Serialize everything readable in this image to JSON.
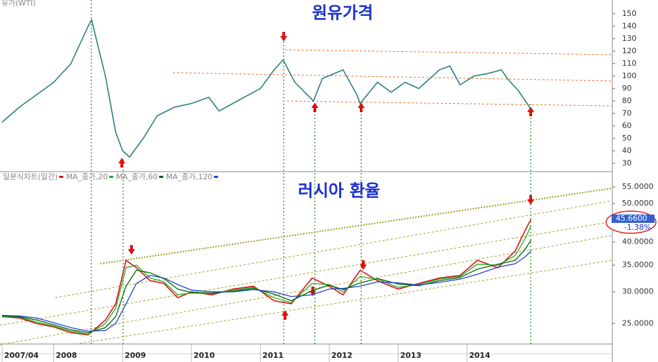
{
  "chart_data": [
    {
      "type": "line",
      "title": "원유가격",
      "axis_label": "유가(WTI)",
      "x": [
        2007.25,
        2007.5,
        2007.75,
        2008.0,
        2008.25,
        2008.5,
        2008.55,
        2008.75,
        2008.9,
        2009.0,
        2009.1,
        2009.3,
        2009.5,
        2009.75,
        2010.0,
        2010.25,
        2010.4,
        2010.6,
        2010.8,
        2011.0,
        2011.2,
        2011.33,
        2011.5,
        2011.77,
        2011.9,
        2012.2,
        2012.4,
        2012.45,
        2012.7,
        2012.9,
        2013.1,
        2013.3,
        2013.6,
        2013.75,
        2013.9,
        2014.1,
        2014.3,
        2014.5,
        2014.6,
        2014.75,
        2014.92
      ],
      "series": [
        {
          "name": "유가(WTI)",
          "color": "#2a7f7f",
          "values": [
            63,
            75,
            85,
            95,
            110,
            140,
            145,
            100,
            55,
            40,
            35,
            50,
            68,
            75,
            78,
            83,
            72,
            78,
            84,
            90,
            105,
            113,
            95,
            80,
            98,
            105,
            85,
            78,
            95,
            87,
            95,
            90,
            105,
            108,
            93,
            100,
            102,
            105,
            97,
            88,
            74
          ]
        }
      ],
      "xlim": [
        2007.22,
        2016.11
      ],
      "ylim": [
        23.3,
        161
      ],
      "yticks": [
        30,
        40,
        50,
        60,
        70,
        80,
        90,
        100,
        110,
        120,
        130,
        140,
        150
      ]
    },
    {
      "type": "line",
      "title": "러시아 환율",
      "log_scale": true,
      "x": [
        2007.25,
        2007.5,
        2007.75,
        2008.0,
        2008.25,
        2008.5,
        2008.75,
        2008.9,
        2009.05,
        2009.2,
        2009.4,
        2009.6,
        2009.8,
        2010.0,
        2010.3,
        2010.6,
        2010.9,
        2011.2,
        2011.45,
        2011.75,
        2012.0,
        2012.2,
        2012.45,
        2012.7,
        2013.0,
        2013.3,
        2013.6,
        2013.9,
        2014.15,
        2014.45,
        2014.7,
        2014.85,
        2014.93
      ],
      "series": [
        {
          "name": "일본식차트(일간)",
          "color": "#e01010",
          "values": [
            26,
            25.8,
            25,
            24.5,
            23.7,
            23.4,
            25.5,
            28,
            36,
            34.5,
            32,
            31.5,
            29,
            30,
            29.5,
            30.5,
            31,
            28.5,
            28,
            32.5,
            31,
            29.5,
            34,
            32,
            30.5,
            31.5,
            32.5,
            33,
            36,
            34.5,
            38,
            43,
            45.66
          ]
        },
        {
          "name": "MA_종가,20",
          "color": "#22aa22",
          "values": [
            26,
            25.9,
            25.2,
            24.6,
            23.9,
            23.5,
            25,
            27.3,
            34.5,
            35,
            32.5,
            31.8,
            29.5,
            29.8,
            29.7,
            30.3,
            30.8,
            29,
            28.2,
            31.5,
            31.3,
            30,
            32.8,
            32.3,
            30.8,
            31.3,
            32.3,
            32.8,
            35.2,
            35,
            37,
            41,
            44
          ]
        },
        {
          "name": "MA_종가,60",
          "color": "#006600",
          "values": [
            26.1,
            26,
            25.5,
            24.8,
            24.1,
            23.7,
            24.4,
            26,
            31,
            34,
            33.5,
            32.4,
            30.5,
            29.9,
            29.8,
            30.1,
            30.6,
            29.6,
            28.5,
            30.2,
            31.2,
            30.4,
            31.6,
            32.4,
            31.4,
            31.1,
            32,
            32.6,
            34.2,
            35.2,
            36,
            38.5,
            40.5
          ]
        },
        {
          "name": "MA_종가,120",
          "color": "#2040d0",
          "values": [
            26.2,
            26.1,
            25.8,
            25.1,
            24.4,
            23.9,
            24,
            25,
            28,
            31.5,
            33,
            32.5,
            31.3,
            30.3,
            30,
            30,
            30.4,
            30,
            29.2,
            29.5,
            30.5,
            30.6,
            31,
            31.8,
            31.6,
            31.2,
            31.7,
            32.3,
            33.2,
            34.6,
            35.3,
            36.8,
            38
          ]
        }
      ],
      "xlim": [
        2007.22,
        2016.11
      ],
      "ylim": [
        22.2,
        59.6
      ],
      "yticks": [
        {
          "value": 25,
          "label": "25.0000"
        },
        {
          "value": 30,
          "label": "30.0000"
        },
        {
          "value": 35,
          "label": "35.0000"
        },
        {
          "value": 40,
          "label": "40.0000"
        },
        {
          "value": 50,
          "label": "50.0000"
        },
        {
          "value": 55,
          "label": "55.0000"
        }
      ],
      "xticks": [
        {
          "value": 2007.25,
          "label": "2007/04"
        },
        {
          "value": 2008,
          "label": "2008"
        },
        {
          "value": 2009,
          "label": "2009"
        },
        {
          "value": 2010,
          "label": "2010"
        },
        {
          "value": 2011,
          "label": "2011"
        },
        {
          "value": 2012,
          "label": "2012"
        },
        {
          "value": 2013,
          "label": "2013"
        },
        {
          "value": 2014,
          "label": "2014"
        }
      ],
      "badge": [
        "45.6600",
        "-1.38%"
      ]
    }
  ]
}
